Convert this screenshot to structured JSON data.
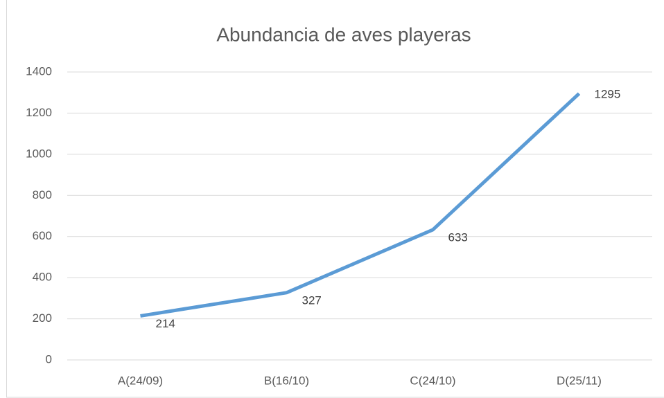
{
  "chart_data": {
    "type": "line",
    "title": "Abundancia de aves playeras",
    "categories": [
      "A(24/09)",
      "B(16/10)",
      "C(24/10)",
      "D(25/11)"
    ],
    "series": [
      {
        "name": "Abundancia",
        "color": "#5b9bd5",
        "values": [
          214,
          327,
          633,
          1295
        ]
      }
    ],
    "ylim": [
      0,
      1400
    ],
    "yticks": [
      0,
      200,
      400,
      600,
      800,
      1000,
      1200,
      1400
    ],
    "grid": true
  }
}
